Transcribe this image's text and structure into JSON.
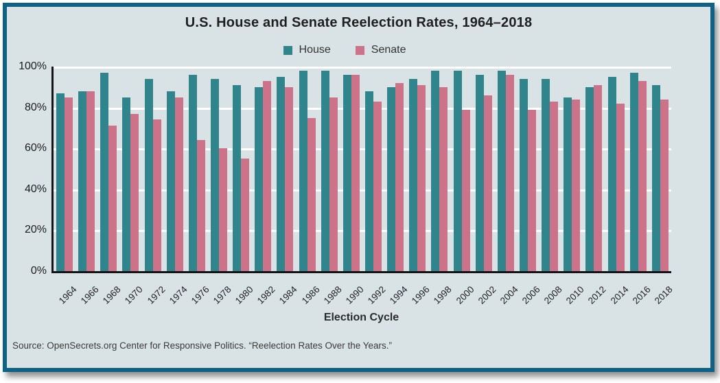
{
  "figure": {
    "source": "Source: OpenSecrets.org Center for Responsive Politics. “Reelection Rates Over the Years.”"
  },
  "colors": {
    "house": "#2f858b",
    "senate": "#cc7389",
    "frame_border": "#0f6284",
    "background": "#d9e3e6",
    "gridline": "#ffffff",
    "axis": "#141414"
  },
  "chart_data": {
    "type": "bar",
    "title": "U.S. House and Senate Reelection Rates, 1964–2018",
    "xlabel": "Election Cycle",
    "ylabel": "",
    "ylim": [
      0,
      100
    ],
    "yticks": [
      "0%",
      "20%",
      "40%",
      "60%",
      "80%",
      "100%"
    ],
    "grid": true,
    "legend_position": "top",
    "categories": [
      "1964",
      "1966",
      "1968",
      "1970",
      "1972",
      "1974",
      "1976",
      "1978",
      "1980",
      "1982",
      "1984",
      "1986",
      "1988",
      "1990",
      "1992",
      "1994",
      "1996",
      "1998",
      "2000",
      "2002",
      "2004",
      "2006",
      "2008",
      "2010",
      "2012",
      "2014",
      "2016",
      "2018"
    ],
    "series": [
      {
        "name": "House",
        "color": "#2f858b",
        "values": [
          87,
          88,
          97,
          85,
          94,
          88,
          96,
          94,
          91,
          90,
          95,
          98,
          98,
          96,
          88,
          90,
          94,
          98,
          98,
          96,
          98,
          94,
          94,
          85,
          90,
          95,
          97,
          91
        ]
      },
      {
        "name": "Senate",
        "color": "#cc7389",
        "values": [
          85,
          88,
          71,
          77,
          74,
          85,
          64,
          60,
          55,
          93,
          90,
          75,
          85,
          96,
          83,
          92,
          91,
          90,
          79,
          86,
          96,
          79,
          83,
          84,
          91,
          82,
          93,
          84
        ]
      }
    ]
  }
}
